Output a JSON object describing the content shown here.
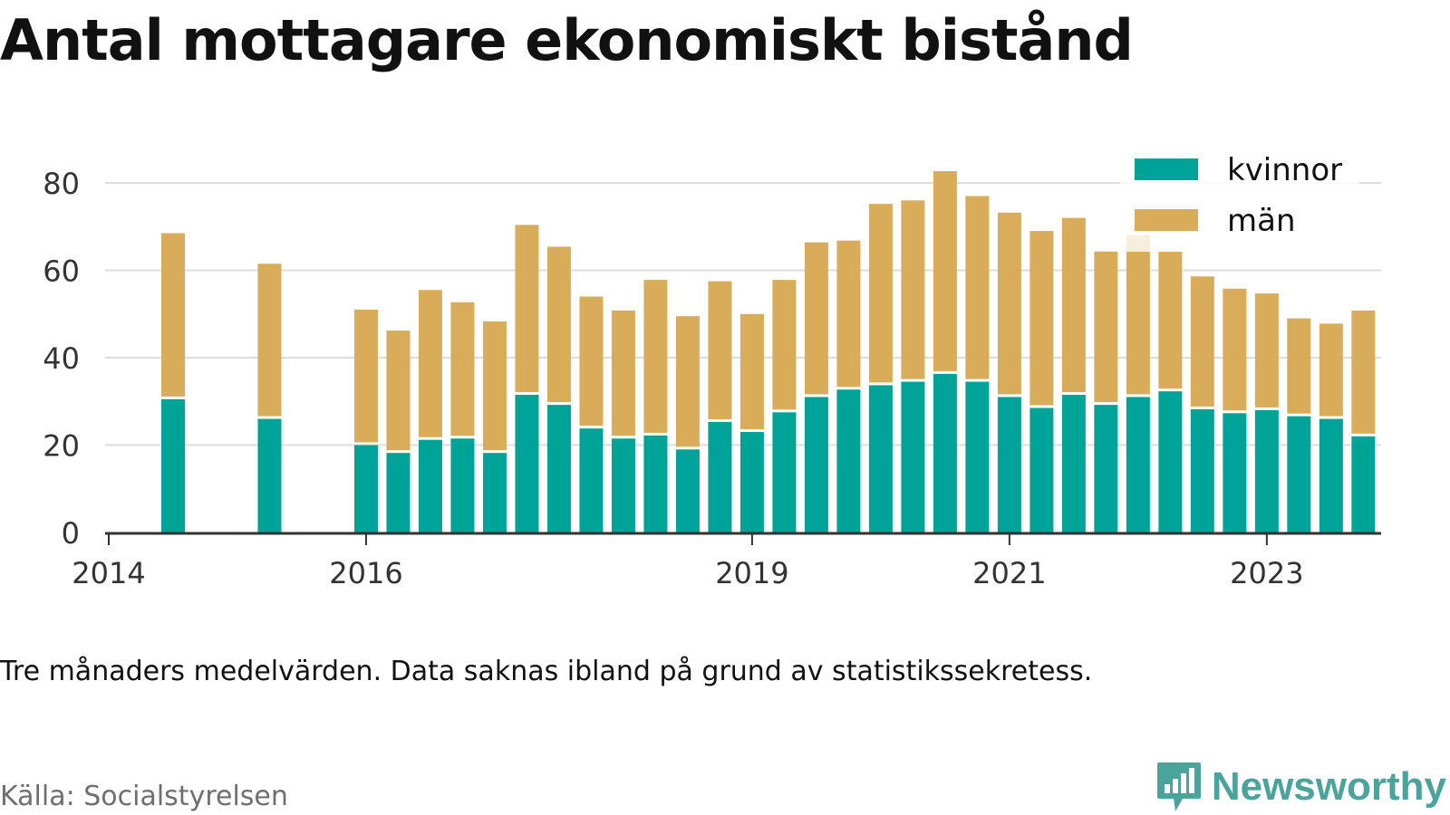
{
  "title": "Antal mottagare ekonomiskt bistånd",
  "footnote": "Tre månaders medelvärden. Data saknas ibland på grund av statistikssekretess.",
  "source": "Källa: Socialstyrelsen",
  "brand": {
    "name": "Newsworthy",
    "icon": "newsworthy-chart-bubble-icon"
  },
  "colors": {
    "kvinnor": "#00a398",
    "man": "#d9ac5a",
    "grid": "#dddddd",
    "axis": "#333333",
    "brand": "#4aa49b"
  },
  "chart_data": {
    "type": "bar",
    "stacked": true,
    "title": "Antal mottagare ekonomiskt bistånd",
    "ylim": [
      0,
      90
    ],
    "yticks": [
      0,
      20,
      40,
      60,
      80
    ],
    "grid": true,
    "legend_position": "top-right",
    "x_ticks": [
      "2014",
      "2016",
      "2019",
      "2021",
      "2023"
    ],
    "categories": [
      "2014-07",
      "2014-10",
      "2015-01",
      "2015-04",
      "2015-07",
      "2015-10",
      "2016-01",
      "2016-04",
      "2016-07",
      "2016-10",
      "2017-01",
      "2017-04",
      "2017-07",
      "2017-10",
      "2018-01",
      "2018-04",
      "2018-07",
      "2018-10",
      "2019-01",
      "2019-04",
      "2019-07",
      "2019-10",
      "2020-01",
      "2020-04",
      "2020-07",
      "2020-10",
      "2021-01",
      "2021-04",
      "2021-07",
      "2021-10",
      "2022-01",
      "2022-04",
      "2022-07",
      "2022-10",
      "2023-01",
      "2023-04",
      "2023-07",
      "2023-10"
    ],
    "series": [
      {
        "name": "kvinnor",
        "values": [
          30.5,
          null,
          null,
          26,
          null,
          null,
          20,
          18.2,
          21.2,
          21.5,
          18.2,
          31.5,
          29.2,
          23.8,
          21.5,
          22.2,
          19,
          25.3,
          23,
          27.5,
          31,
          32.7,
          33.7,
          34.5,
          36.3,
          34.5,
          31,
          28.5,
          31.5,
          29.2,
          31,
          32.3,
          28.2,
          27.3,
          28,
          26.6,
          26,
          22
        ]
      },
      {
        "name": "män",
        "values": [
          38,
          null,
          null,
          35.5,
          null,
          null,
          31,
          28,
          34.3,
          31.2,
          30.1,
          38.9,
          36.2,
          30.2,
          29.3,
          35.6,
          30.5,
          32.2,
          27,
          30.3,
          35.4,
          34.1,
          41.5,
          41.5,
          46.4,
          42.5,
          42.2,
          40.5,
          40.5,
          35.1,
          37.1,
          32,
          30.4,
          28.5,
          26.7,
          22.4,
          21.8,
          28.8
        ]
      }
    ]
  }
}
